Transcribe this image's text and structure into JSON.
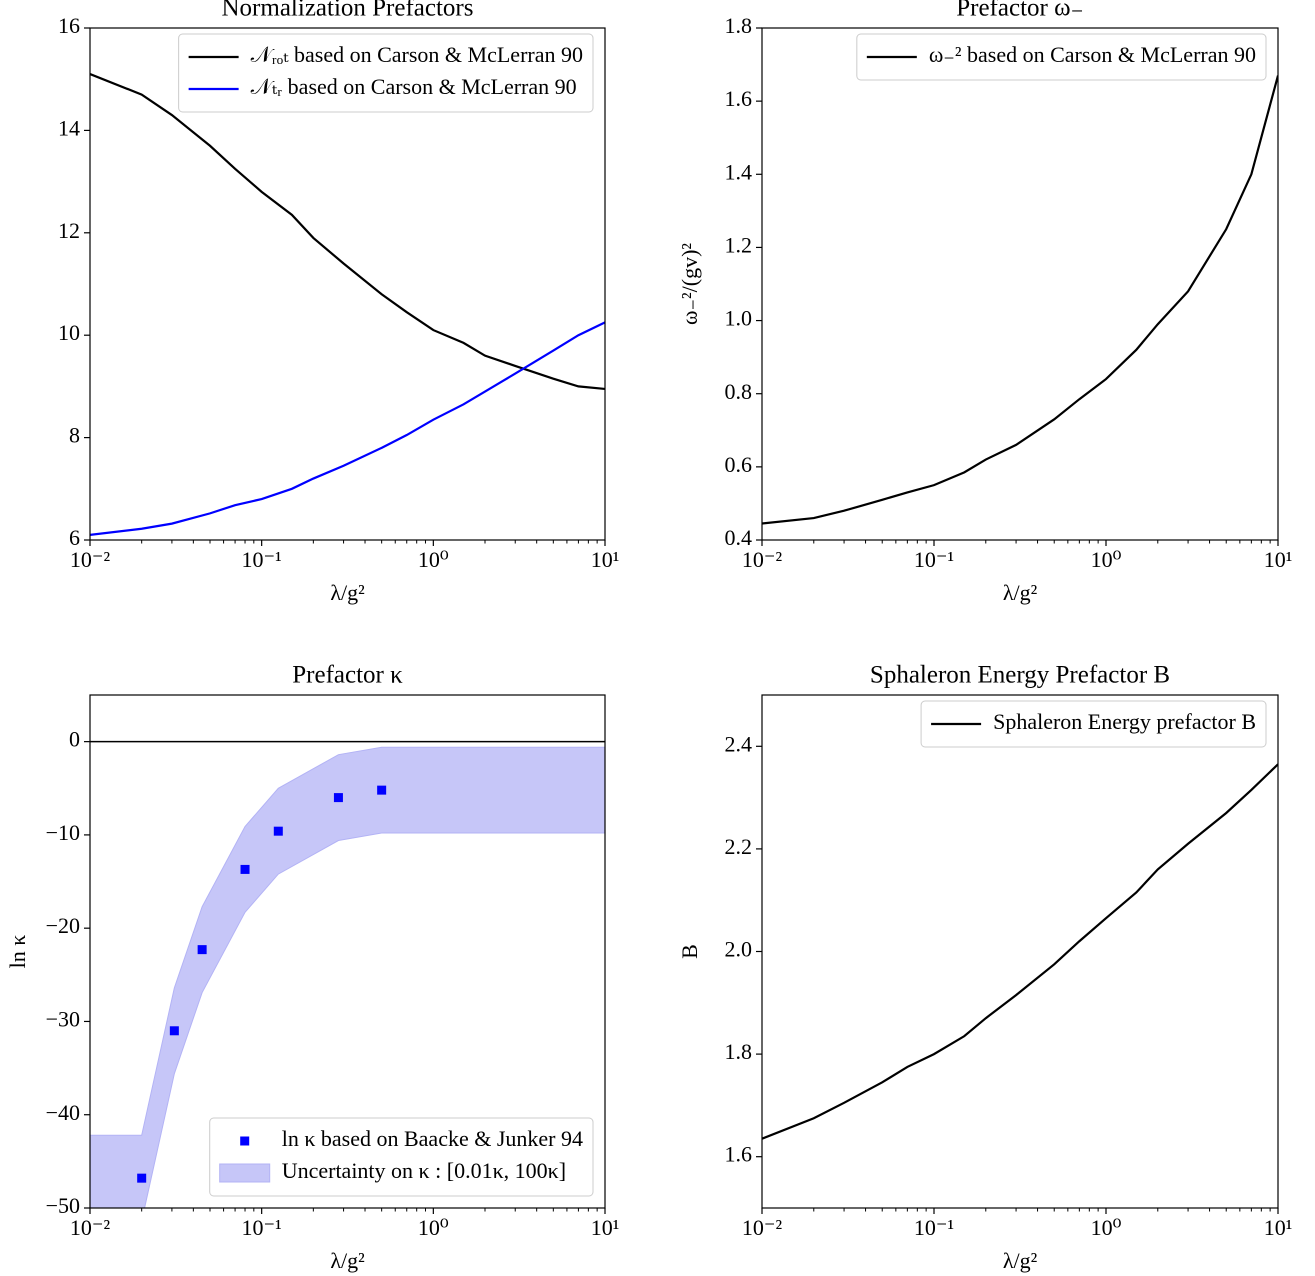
{
  "chart_data": [
    {
      "type": "line",
      "title": "Normalization Prefactors",
      "xlabel": "λ/g²",
      "xscale": "log",
      "xlim": [
        0.01,
        10
      ],
      "xticks": [
        {
          "value": 0.01,
          "label": "10⁻²"
        },
        {
          "value": 0.1,
          "label": "10⁻¹"
        },
        {
          "value": 1,
          "label": "10⁰"
        },
        {
          "value": 10,
          "label": "10¹"
        }
      ],
      "ylim": [
        6,
        16
      ],
      "yticks": [
        6,
        8,
        10,
        12,
        14,
        16
      ],
      "legend": "upper right",
      "x": [
        0.01,
        0.02,
        0.03,
        0.05,
        0.07,
        0.1,
        0.15,
        0.2,
        0.3,
        0.5,
        0.7,
        1,
        1.5,
        2,
        3,
        5,
        7,
        10
      ],
      "series": [
        {
          "name": "𝒩ᵣₒₜ based on Carson & McLerran 90",
          "color": "#000000",
          "values": [
            15.1,
            14.7,
            14.3,
            13.7,
            13.25,
            12.8,
            12.35,
            11.9,
            11.4,
            10.8,
            10.45,
            10.1,
            9.85,
            9.6,
            9.4,
            9.15,
            9.0,
            8.95
          ]
        },
        {
          "name": "𝒩ₜᵣ based on Carson & McLerran 90",
          "color": "#0000ff",
          "values": [
            6.1,
            6.22,
            6.32,
            6.52,
            6.68,
            6.8,
            7.0,
            7.2,
            7.45,
            7.8,
            8.05,
            8.35,
            8.65,
            8.9,
            9.25,
            9.7,
            10.0,
            10.25
          ]
        }
      ]
    },
    {
      "type": "line",
      "title": "Prefactor ω₋",
      "xlabel": "λ/g²",
      "ylabel": "ω₋²/(gv)²",
      "xscale": "log",
      "xlim": [
        0.01,
        10
      ],
      "xticks": [
        {
          "value": 0.01,
          "label": "10⁻²"
        },
        {
          "value": 0.1,
          "label": "10⁻¹"
        },
        {
          "value": 1,
          "label": "10⁰"
        },
        {
          "value": 10,
          "label": "10¹"
        }
      ],
      "ylim": [
        0.4,
        1.8
      ],
      "yticks": [
        0.4,
        0.6,
        0.8,
        {
          "value": 1,
          "label": "1.0"
        },
        1.2,
        1.4,
        1.6,
        1.8
      ],
      "legend": "upper right",
      "x": [
        0.01,
        0.02,
        0.03,
        0.05,
        0.07,
        0.1,
        0.15,
        0.2,
        0.3,
        0.5,
        0.7,
        1,
        1.5,
        2,
        3,
        5,
        7,
        10
      ],
      "series": [
        {
          "name": "ω₋² based on Carson & McLerran 90",
          "color": "#000000",
          "values": [
            0.445,
            0.46,
            0.48,
            0.51,
            0.53,
            0.55,
            0.585,
            0.62,
            0.66,
            0.73,
            0.785,
            0.84,
            0.92,
            0.99,
            1.08,
            1.25,
            1.4,
            1.67
          ]
        }
      ]
    },
    {
      "type": "scatter",
      "title": "Prefactor κ",
      "xlabel": "λ/g²",
      "ylabel": "ln κ",
      "xscale": "log",
      "xlim": [
        0.01,
        10
      ],
      "xticks": [
        {
          "value": 0.01,
          "label": "10⁻²"
        },
        {
          "value": 0.1,
          "label": "10⁻¹"
        },
        {
          "value": 1,
          "label": "10⁰"
        },
        {
          "value": 10,
          "label": "10¹"
        }
      ],
      "ylim": [
        -50,
        5
      ],
      "yticks": [
        {
          "value": -50,
          "label": "−50"
        },
        {
          "value": -40,
          "label": "−40"
        },
        {
          "value": -30,
          "label": "−30"
        },
        {
          "value": -20,
          "label": "−20"
        },
        {
          "value": -10,
          "label": "−10"
        },
        0
      ],
      "legend": "lower right",
      "hline": 0,
      "series": [
        {
          "name": "ln κ based on Baacke & Junker 94",
          "color": "#0000ff",
          "x": [
            0.02,
            0.031,
            0.045,
            0.08,
            0.125,
            0.28,
            0.5
          ],
          "values": [
            -46.8,
            -31,
            -22.3,
            -13.7,
            -9.6,
            -6,
            -5.2
          ]
        }
      ],
      "band": {
        "name": "Uncertainty on κ : [0.01κ, 100κ]",
        "color": "#b3b3f5",
        "x": [
          0.01,
          0.02,
          0.031,
          0.045,
          0.08,
          0.125,
          0.28,
          0.5,
          10
        ],
        "lower": [
          -51.4,
          -51.4,
          -35.6,
          -26.9,
          -18.3,
          -14.2,
          -10.6,
          -9.8,
          -9.8
        ],
        "upper": [
          -42.2,
          -42.2,
          -26.4,
          -17.7,
          -9.1,
          -5.0,
          -1.4,
          -0.6,
          -0.6
        ]
      }
    },
    {
      "type": "line",
      "title": "Sphaleron Energy Prefactor B",
      "xlabel": "λ/g²",
      "ylabel": "B",
      "xscale": "log",
      "xlim": [
        0.01,
        10
      ],
      "xticks": [
        {
          "value": 0.01,
          "label": "10⁻²"
        },
        {
          "value": 0.1,
          "label": "10⁻¹"
        },
        {
          "value": 1,
          "label": "10⁰"
        },
        {
          "value": 10,
          "label": "10¹"
        }
      ],
      "ylim": [
        1.5,
        2.5
      ],
      "yticks": [
        1.6,
        1.8,
        {
          "value": 2,
          "label": "2.0"
        },
        2.2,
        2.4
      ],
      "legend": "upper right",
      "x": [
        0.01,
        0.02,
        0.03,
        0.05,
        0.07,
        0.1,
        0.15,
        0.2,
        0.3,
        0.5,
        0.7,
        1,
        1.5,
        2,
        3,
        5,
        7,
        10
      ],
      "series": [
        {
          "name": "Sphaleron Energy prefactor B",
          "color": "#000000",
          "values": [
            1.635,
            1.675,
            1.705,
            1.745,
            1.775,
            1.8,
            1.835,
            1.87,
            1.915,
            1.975,
            2.02,
            2.065,
            2.115,
            2.16,
            2.21,
            2.27,
            2.315,
            2.365
          ]
        }
      ]
    }
  ]
}
